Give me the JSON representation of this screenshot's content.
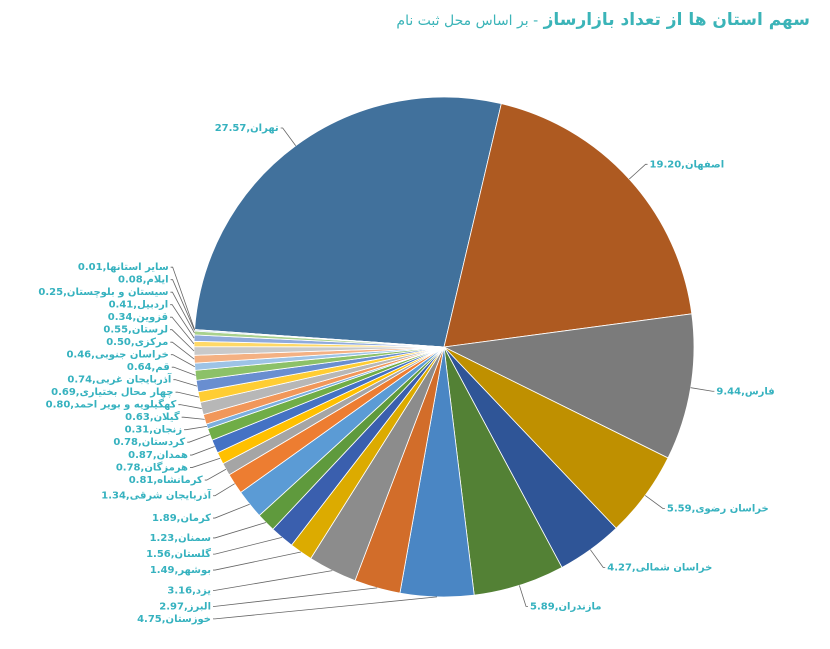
{
  "chart_data": {
    "type": "pie",
    "title": "سهم استان ها از تعداد بازارساز",
    "subtitle": "- بر اساس محل ثبت نام",
    "values": [
      27.57,
      19.2,
      9.44,
      5.59,
      4.27,
      5.89,
      4.75,
      2.97,
      3.16,
      1.49,
      1.56,
      1.23,
      1.89,
      1.34,
      0.81,
      0.78,
      0.87,
      0.78,
      0.31,
      0.63,
      0.8,
      0.69,
      0.74,
      0.64,
      0.46,
      0.5,
      0.55,
      0.34,
      0.41,
      0.25,
      0.08,
      0.01
    ],
    "value_labels": [
      "تهران,27.57",
      "اصفهان,19.20",
      "فارس,9.44",
      "خراسان رضوی,5.59",
      "خراسان شمالی,4.27",
      "مازندران,5.89",
      "خوزستان,4.75",
      "البرز,2.97",
      "یزد,3.16",
      "بوشهر,1.49",
      "گلستان,1.56",
      "سمنان,1.23",
      "کرمان,1.89",
      "آذربایجان شرقی,1.34",
      "کرمانشاه,0.81",
      "هرمزگان,0.78",
      "همدان,0.87",
      "کردستان,0.78",
      "زنجان,0.31",
      "گیلان,0.63",
      "کهگیلویه و بویر احمد,0.80",
      "چهار محال بختیاری,0.69",
      "آذربایجان غربی,0.74",
      "قم,0.64",
      "خراسان جنوبی,0.46",
      "مرکزی,0.50",
      "لرستان,0.55",
      "قزوین,0.34",
      "اردبیل,0.41",
      "سیستان و بلوچستان,0.25",
      "ایلام,0.08",
      "سایر استانها,0.01"
    ],
    "colors": [
      "#41719c",
      "#ae5a21",
      "#7b7b7b",
      "#bf9000",
      "#2f5597",
      "#538135",
      "#4a86c4",
      "#d26d2a",
      "#8c8c8c",
      "#dcab00",
      "#3a5fae",
      "#5f9a3d",
      "#5b9bd5",
      "#ed7d31",
      "#a5a5a5",
      "#ffc000",
      "#4472c4",
      "#70ad47",
      "#7cafdd",
      "#f1975a",
      "#b7b7b7",
      "#ffcd33",
      "#698ed0",
      "#8cc168",
      "#9dc3e6",
      "#f4b183",
      "#c9c9c9",
      "#ffd966",
      "#8faadc",
      "#a9d18e",
      "#bdd7ee",
      "#f8cbad"
    ]
  }
}
